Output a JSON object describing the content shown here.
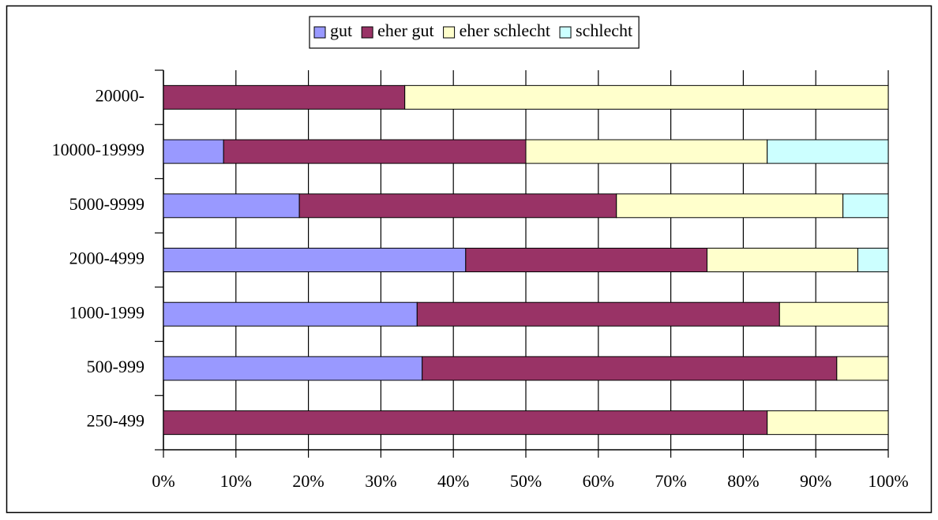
{
  "chart_data": {
    "type": "stacked-barh",
    "categories": [
      "20000-",
      "10000-19999",
      "5000-9999",
      "2000-4999",
      "1000-1999",
      "500-999",
      "250-499"
    ],
    "series": [
      {
        "name": "gut",
        "color": "#9999ff",
        "values": [
          0,
          8.3,
          18.75,
          41.7,
          35,
          35.7,
          0
        ]
      },
      {
        "name": "eher gut",
        "color": "#993366",
        "values": [
          33.3,
          41.7,
          43.75,
          33.3,
          50,
          57.2,
          83.3
        ]
      },
      {
        "name": "eher schlecht",
        "color": "#ffffcc",
        "values": [
          66.7,
          33.3,
          31.25,
          20.8,
          15,
          7.1,
          16.7
        ]
      },
      {
        "name": "schlecht",
        "color": "#ccffff",
        "values": [
          0,
          16.7,
          6.25,
          4.2,
          0,
          0,
          0
        ]
      }
    ],
    "xlim": [
      0,
      100
    ],
    "xticks": [
      {
        "value": 0,
        "label": "0%"
      },
      {
        "value": 10,
        "label": "10%"
      },
      {
        "value": 20,
        "label": "20%"
      },
      {
        "value": 30,
        "label": "30%"
      },
      {
        "value": 40,
        "label": "40%"
      },
      {
        "value": 50,
        "label": "50%"
      },
      {
        "value": 60,
        "label": "60%"
      },
      {
        "value": 70,
        "label": "70%"
      },
      {
        "value": 80,
        "label": "80%"
      },
      {
        "value": 90,
        "label": "90%"
      },
      {
        "value": 100,
        "label": "100%"
      }
    ],
    "grid": true,
    "legend": "top"
  }
}
